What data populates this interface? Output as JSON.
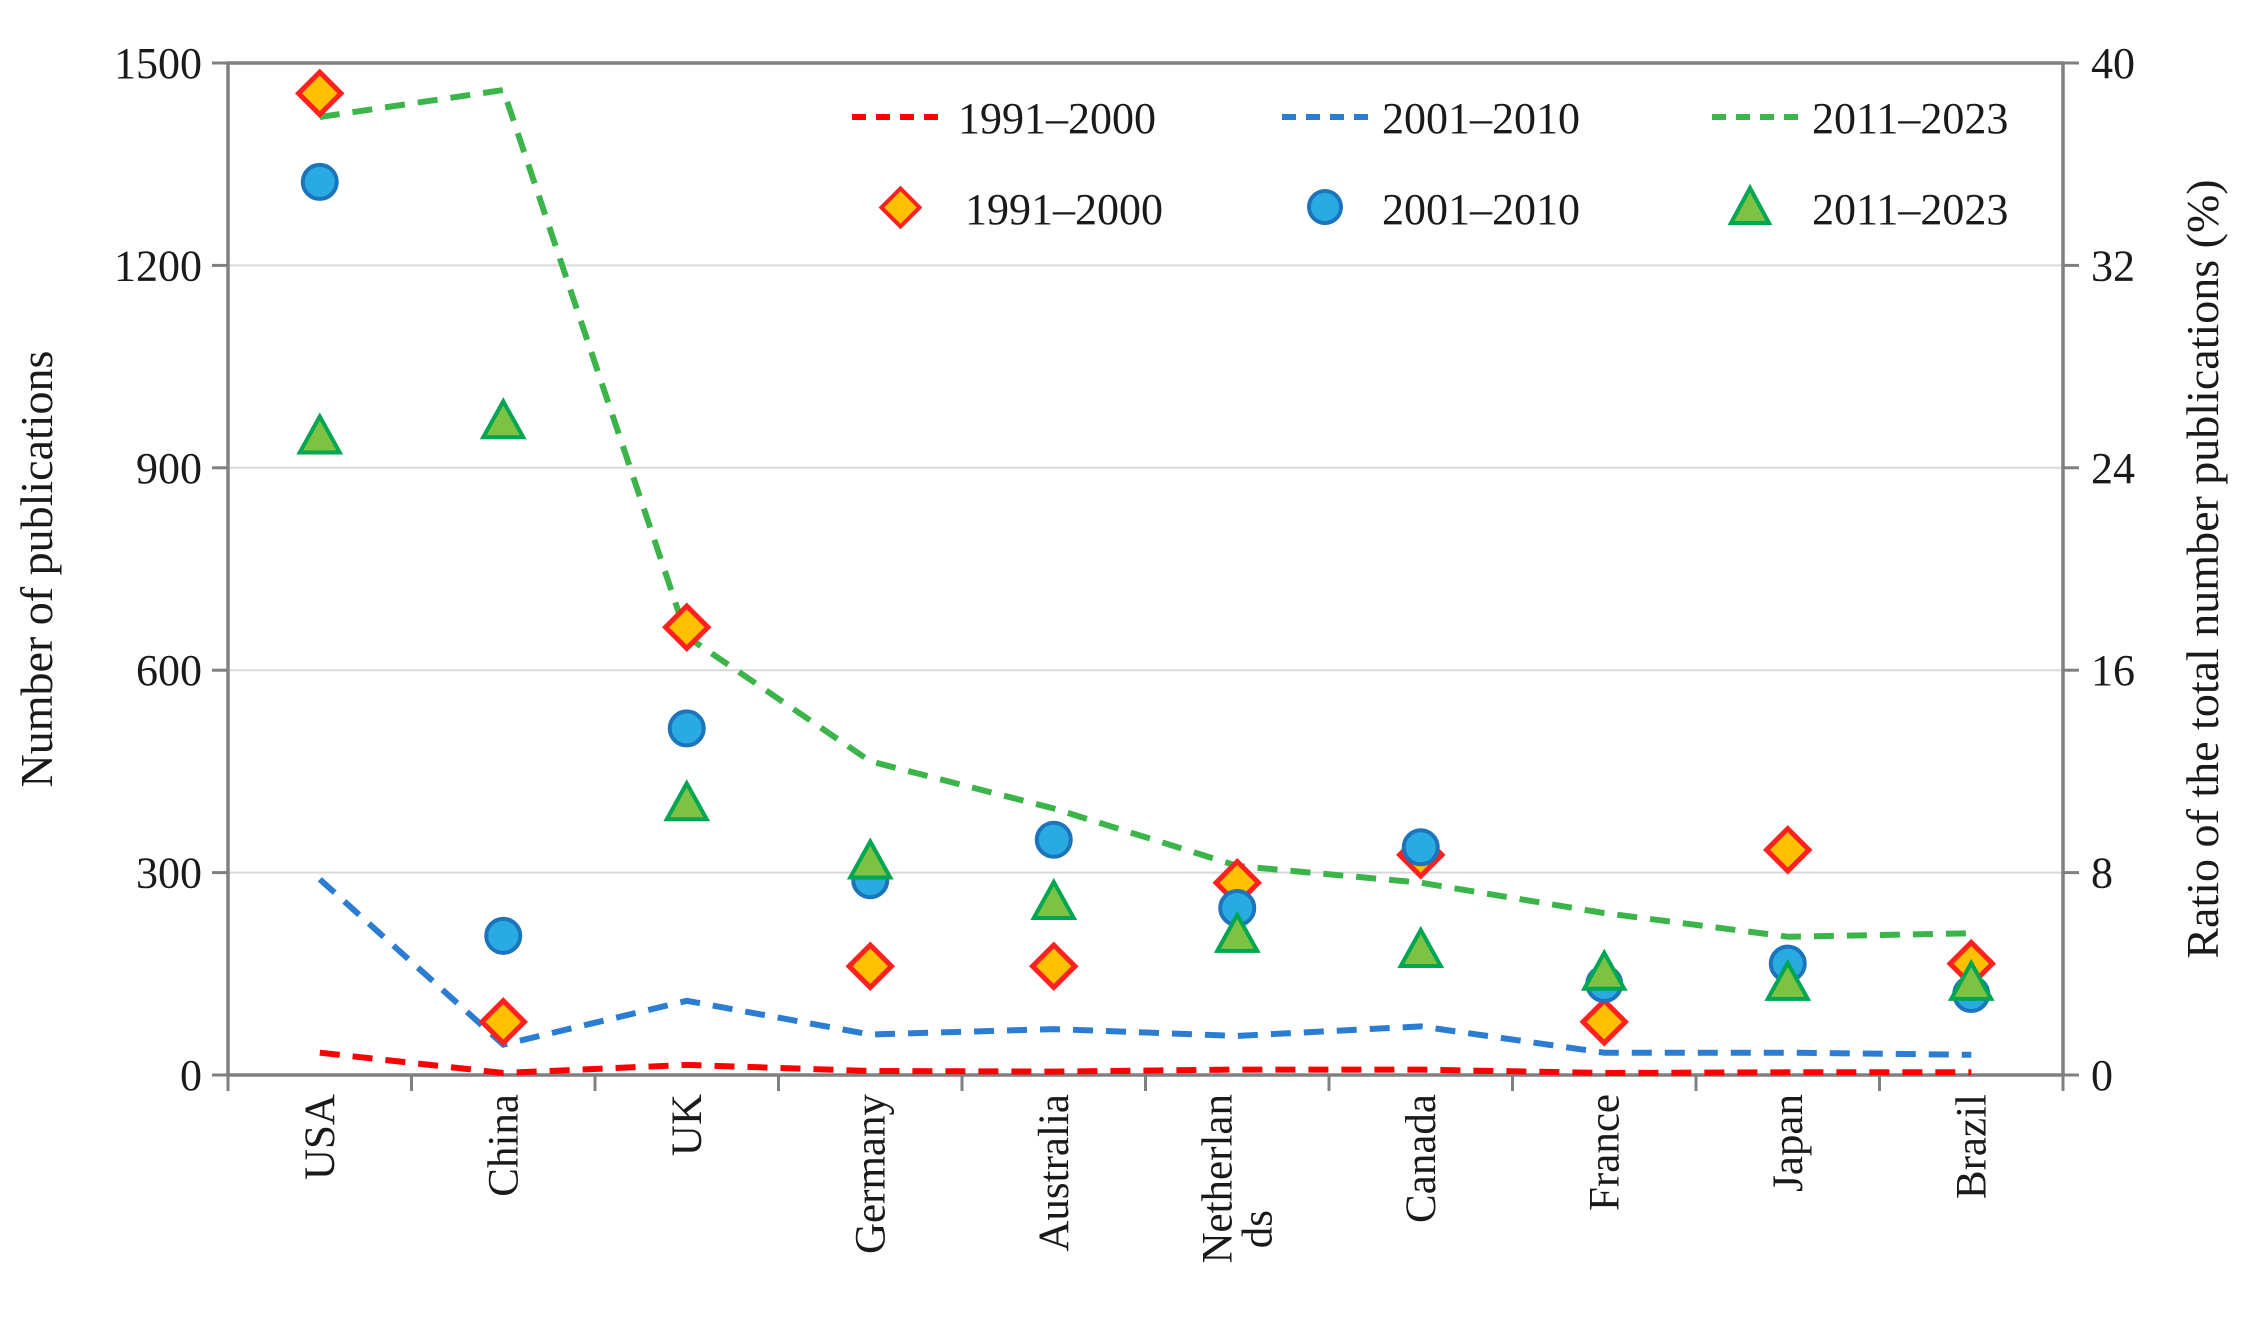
{
  "figure": {
    "background": "#ffffff",
    "axis_line_color": "#808080",
    "gridline_color": "#d9d9d9",
    "text_color": "#1a1a1a"
  },
  "legend": {
    "line_row": [
      {
        "label": "1991–2000",
        "color": "#FF0000"
      },
      {
        "label": "2001–2010",
        "color": "#2B7CD3"
      },
      {
        "label": "2011–2023",
        "color": "#3BB54A"
      }
    ],
    "marker_row": [
      {
        "label": "1991–2000",
        "shape": "diamond",
        "fill": "#FFC000",
        "stroke": "#FF2020"
      },
      {
        "label": "2001–2010",
        "shape": "circle",
        "fill": "#29ABE2",
        "stroke": "#1C75BC"
      },
      {
        "label": "2011–2023",
        "shape": "triangle",
        "fill": "#7DC242",
        "stroke": "#00A651"
      }
    ]
  },
  "chart_data": {
    "type": "line+scatter",
    "categories": [
      "USA",
      "China",
      "UK",
      "Germany",
      "Australia",
      "Netherlands",
      "Canada",
      "France",
      "Japan",
      "Brazil"
    ],
    "x_label_wrap": {
      "Netherlands": [
        "Netherlan",
        "ds"
      ]
    },
    "left_axis": {
      "label": "Number of publications",
      "min": 0,
      "max": 1500,
      "tick_step": 300,
      "ticks": [
        1500,
        1200,
        900,
        600,
        300,
        0
      ]
    },
    "right_axis": {
      "label": "Ratio of the total number publications (%)",
      "min": 0,
      "max": 40,
      "tick_step": 8,
      "ticks": [
        40,
        32,
        24,
        16,
        8,
        0
      ]
    },
    "grid": true,
    "legend_position": "top",
    "line_series": [
      {
        "name": "1991–2000",
        "axis": "left",
        "style": "dashed",
        "color": "#FF0000",
        "values": [
          33,
          3,
          15,
          6,
          5,
          8,
          8,
          3,
          4,
          4
        ]
      },
      {
        "name": "2001–2010",
        "axis": "left",
        "style": "dashed",
        "color": "#2B7CD3",
        "values": [
          290,
          45,
          110,
          60,
          68,
          58,
          72,
          33,
          33,
          30
        ]
      },
      {
        "name": "2011–2023",
        "axis": "left",
        "style": "dashed",
        "color": "#3BB54A",
        "values": [
          1420,
          1460,
          650,
          465,
          395,
          310,
          285,
          240,
          205,
          210
        ]
      }
    ],
    "scatter_series": [
      {
        "name": "1991–2000",
        "axis": "right",
        "marker": "diamond",
        "fill": "#FFC000",
        "stroke": "#FF2020",
        "values": [
          38.8,
          2.1,
          17.7,
          4.3,
          4.3,
          7.6,
          8.7,
          2.1,
          8.9,
          4.4
        ]
      },
      {
        "name": "2001–2010",
        "axis": "right",
        "marker": "circle",
        "fill": "#29ABE2",
        "stroke": "#1C75BC",
        "values": [
          35.3,
          5.5,
          13.7,
          7.7,
          9.3,
          6.6,
          9.0,
          3.6,
          4.4,
          3.2
        ]
      },
      {
        "name": "2011–2023",
        "axis": "right",
        "marker": "triangle",
        "fill": "#7DC242",
        "stroke": "#00A651",
        "values": [
          25.2,
          25.8,
          10.7,
          8.4,
          6.8,
          5.5,
          4.9,
          4.0,
          3.6,
          3.6
        ]
      }
    ]
  }
}
